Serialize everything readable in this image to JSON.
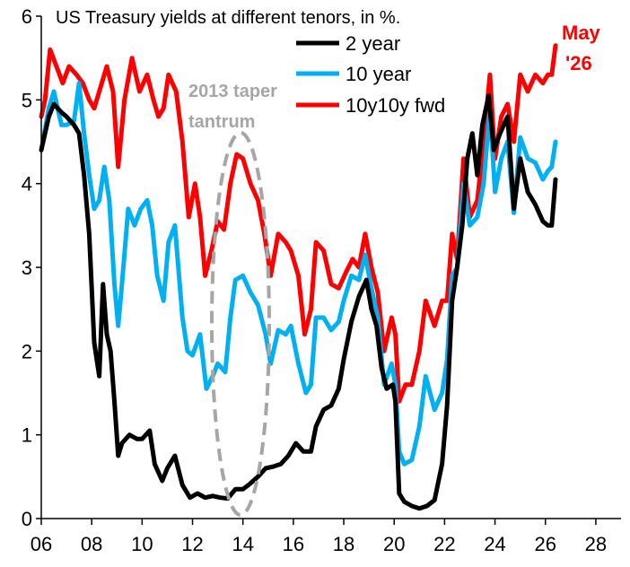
{
  "chart_data": {
    "type": "line",
    "title": "US Treasury yields at different tenors, in %.",
    "xlabel": "",
    "ylabel": "",
    "xlim": [
      2006,
      2029
    ],
    "ylim": [
      0,
      6
    ],
    "x_ticks": [
      "06",
      "08",
      "10",
      "12",
      "14",
      "16",
      "18",
      "20",
      "22",
      "24",
      "26",
      "28"
    ],
    "y_ticks": [
      "0",
      "1",
      "2",
      "3",
      "4",
      "5",
      "6"
    ],
    "grid": false,
    "legend_position": "top-center",
    "annotations": {
      "taper": [
        "2013 taper",
        "tantrum"
      ],
      "date_label": [
        "May",
        "'26"
      ]
    },
    "series": [
      {
        "name": "2 year",
        "color": "#000000",
        "points": [
          [
            2006.0,
            4.4
          ],
          [
            2006.3,
            4.8
          ],
          [
            2006.5,
            4.95
          ],
          [
            2006.8,
            4.85
          ],
          [
            2007.0,
            4.8
          ],
          [
            2007.3,
            4.7
          ],
          [
            2007.5,
            4.6
          ],
          [
            2007.7,
            4.1
          ],
          [
            2007.9,
            3.4
          ],
          [
            2008.1,
            2.1
          ],
          [
            2008.3,
            1.7
          ],
          [
            2008.45,
            2.8
          ],
          [
            2008.6,
            2.2
          ],
          [
            2008.75,
            2.0
          ],
          [
            2008.9,
            1.4
          ],
          [
            2009.05,
            0.75
          ],
          [
            2009.2,
            0.9
          ],
          [
            2009.5,
            1.0
          ],
          [
            2009.8,
            0.95
          ],
          [
            2010.0,
            0.95
          ],
          [
            2010.3,
            1.05
          ],
          [
            2010.5,
            0.65
          ],
          [
            2010.8,
            0.45
          ],
          [
            2011.0,
            0.6
          ],
          [
            2011.3,
            0.75
          ],
          [
            2011.6,
            0.4
          ],
          [
            2011.9,
            0.25
          ],
          [
            2012.2,
            0.3
          ],
          [
            2012.5,
            0.25
          ],
          [
            2012.8,
            0.27
          ],
          [
            2013.1,
            0.25
          ],
          [
            2013.4,
            0.24
          ],
          [
            2013.7,
            0.35
          ],
          [
            2014.0,
            0.35
          ],
          [
            2014.3,
            0.42
          ],
          [
            2014.6,
            0.5
          ],
          [
            2014.9,
            0.6
          ],
          [
            2015.2,
            0.62
          ],
          [
            2015.5,
            0.65
          ],
          [
            2015.8,
            0.75
          ],
          [
            2016.1,
            0.9
          ],
          [
            2016.4,
            0.8
          ],
          [
            2016.7,
            0.8
          ],
          [
            2016.9,
            1.1
          ],
          [
            2017.2,
            1.3
          ],
          [
            2017.5,
            1.35
          ],
          [
            2017.8,
            1.55
          ],
          [
            2018.0,
            1.9
          ],
          [
            2018.3,
            2.35
          ],
          [
            2018.6,
            2.65
          ],
          [
            2018.9,
            2.85
          ],
          [
            2019.1,
            2.5
          ],
          [
            2019.3,
            2.3
          ],
          [
            2019.5,
            1.8
          ],
          [
            2019.7,
            1.55
          ],
          [
            2019.95,
            1.6
          ],
          [
            2020.05,
            1.4
          ],
          [
            2020.2,
            0.3
          ],
          [
            2020.4,
            0.2
          ],
          [
            2020.7,
            0.15
          ],
          [
            2021.0,
            0.12
          ],
          [
            2021.3,
            0.15
          ],
          [
            2021.6,
            0.22
          ],
          [
            2021.9,
            0.65
          ],
          [
            2022.1,
            1.35
          ],
          [
            2022.3,
            2.6
          ],
          [
            2022.5,
            3.0
          ],
          [
            2022.7,
            3.5
          ],
          [
            2022.9,
            4.3
          ],
          [
            2023.1,
            4.6
          ],
          [
            2023.3,
            4.1
          ],
          [
            2023.5,
            4.7
          ],
          [
            2023.75,
            5.05
          ],
          [
            2023.95,
            4.4
          ],
          [
            2024.2,
            4.6
          ],
          [
            2024.5,
            4.8
          ],
          [
            2024.75,
            3.7
          ],
          [
            2025.0,
            4.3
          ],
          [
            2025.3,
            3.9
          ],
          [
            2025.6,
            3.75
          ],
          [
            2025.9,
            3.55
          ],
          [
            2026.1,
            3.5
          ],
          [
            2026.25,
            3.5
          ],
          [
            2026.4,
            4.05
          ]
        ]
      },
      {
        "name": "10 year",
        "color": "#00b0f0",
        "points": [
          [
            2006.0,
            4.4
          ],
          [
            2006.3,
            4.9
          ],
          [
            2006.5,
            5.1
          ],
          [
            2006.8,
            4.7
          ],
          [
            2007.0,
            4.7
          ],
          [
            2007.3,
            4.75
          ],
          [
            2007.5,
            5.2
          ],
          [
            2007.7,
            4.6
          ],
          [
            2007.9,
            4.1
          ],
          [
            2008.1,
            3.7
          ],
          [
            2008.3,
            3.8
          ],
          [
            2008.5,
            4.2
          ],
          [
            2008.7,
            3.8
          ],
          [
            2008.9,
            2.8
          ],
          [
            2009.05,
            2.3
          ],
          [
            2009.2,
            2.8
          ],
          [
            2009.45,
            3.7
          ],
          [
            2009.7,
            3.5
          ],
          [
            2009.95,
            3.7
          ],
          [
            2010.2,
            3.8
          ],
          [
            2010.4,
            3.5
          ],
          [
            2010.6,
            2.9
          ],
          [
            2010.85,
            2.6
          ],
          [
            2011.05,
            3.3
          ],
          [
            2011.3,
            3.5
          ],
          [
            2011.6,
            2.4
          ],
          [
            2011.8,
            2.0
          ],
          [
            2012.0,
            1.95
          ],
          [
            2012.3,
            2.2
          ],
          [
            2012.55,
            1.55
          ],
          [
            2012.8,
            1.7
          ],
          [
            2013.0,
            1.85
          ],
          [
            2013.3,
            1.75
          ],
          [
            2013.5,
            2.4
          ],
          [
            2013.7,
            2.85
          ],
          [
            2014.0,
            2.9
          ],
          [
            2014.3,
            2.7
          ],
          [
            2014.6,
            2.55
          ],
          [
            2014.9,
            2.2
          ],
          [
            2015.1,
            1.85
          ],
          [
            2015.4,
            2.25
          ],
          [
            2015.7,
            2.2
          ],
          [
            2015.9,
            2.3
          ],
          [
            2016.2,
            1.85
          ],
          [
            2016.5,
            1.5
          ],
          [
            2016.7,
            1.6
          ],
          [
            2016.9,
            2.4
          ],
          [
            2017.2,
            2.4
          ],
          [
            2017.5,
            2.25
          ],
          [
            2017.8,
            2.35
          ],
          [
            2018.0,
            2.6
          ],
          [
            2018.3,
            2.9
          ],
          [
            2018.6,
            2.85
          ],
          [
            2018.85,
            3.15
          ],
          [
            2019.1,
            2.75
          ],
          [
            2019.35,
            2.4
          ],
          [
            2019.6,
            1.6
          ],
          [
            2019.9,
            1.85
          ],
          [
            2020.05,
            1.6
          ],
          [
            2020.2,
            0.8
          ],
          [
            2020.4,
            0.65
          ],
          [
            2020.7,
            0.7
          ],
          [
            2021.0,
            1.1
          ],
          [
            2021.25,
            1.7
          ],
          [
            2021.6,
            1.3
          ],
          [
            2021.9,
            1.5
          ],
          [
            2022.1,
            1.9
          ],
          [
            2022.3,
            2.9
          ],
          [
            2022.5,
            3.0
          ],
          [
            2022.75,
            4.0
          ],
          [
            2023.0,
            3.5
          ],
          [
            2023.3,
            3.6
          ],
          [
            2023.55,
            4.0
          ],
          [
            2023.8,
            4.9
          ],
          [
            2024.0,
            3.9
          ],
          [
            2024.25,
            4.3
          ],
          [
            2024.5,
            4.5
          ],
          [
            2024.75,
            3.65
          ],
          [
            2025.0,
            4.55
          ],
          [
            2025.3,
            4.3
          ],
          [
            2025.6,
            4.25
          ],
          [
            2025.9,
            4.05
          ],
          [
            2026.1,
            4.15
          ],
          [
            2026.25,
            4.2
          ],
          [
            2026.4,
            4.5
          ]
        ]
      },
      {
        "name": "10y10y fwd",
        "color": "#ff0000",
        "points": [
          [
            2006.0,
            4.8
          ],
          [
            2006.15,
            5.0
          ],
          [
            2006.35,
            5.6
          ],
          [
            2006.6,
            5.4
          ],
          [
            2006.85,
            5.2
          ],
          [
            2007.1,
            5.4
          ],
          [
            2007.4,
            5.3
          ],
          [
            2007.65,
            5.2
          ],
          [
            2007.9,
            5.0
          ],
          [
            2008.1,
            4.9
          ],
          [
            2008.3,
            5.1
          ],
          [
            2008.6,
            5.4
          ],
          [
            2008.85,
            5.1
          ],
          [
            2009.05,
            4.2
          ],
          [
            2009.3,
            5.0
          ],
          [
            2009.6,
            5.5
          ],
          [
            2009.9,
            5.1
          ],
          [
            2010.2,
            5.3
          ],
          [
            2010.45,
            5.0
          ],
          [
            2010.65,
            4.8
          ],
          [
            2010.85,
            4.9
          ],
          [
            2011.05,
            5.3
          ],
          [
            2011.35,
            5.1
          ],
          [
            2011.6,
            4.5
          ],
          [
            2011.85,
            3.6
          ],
          [
            2012.1,
            4.0
          ],
          [
            2012.3,
            3.6
          ],
          [
            2012.5,
            2.9
          ],
          [
            2012.75,
            3.2
          ],
          [
            2013.0,
            3.55
          ],
          [
            2013.25,
            3.45
          ],
          [
            2013.5,
            4.0
          ],
          [
            2013.75,
            4.35
          ],
          [
            2014.0,
            4.3
          ],
          [
            2014.3,
            4.0
          ],
          [
            2014.6,
            3.8
          ],
          [
            2014.85,
            3.4
          ],
          [
            2015.1,
            2.9
          ],
          [
            2015.4,
            3.4
          ],
          [
            2015.7,
            3.3
          ],
          [
            2015.9,
            3.2
          ],
          [
            2016.2,
            2.9
          ],
          [
            2016.45,
            2.2
          ],
          [
            2016.7,
            2.5
          ],
          [
            2016.9,
            3.3
          ],
          [
            2017.2,
            3.2
          ],
          [
            2017.5,
            2.8
          ],
          [
            2017.8,
            2.75
          ],
          [
            2018.1,
            2.95
          ],
          [
            2018.35,
            3.1
          ],
          [
            2018.6,
            3.0
          ],
          [
            2018.85,
            3.4
          ],
          [
            2019.1,
            3.0
          ],
          [
            2019.35,
            2.7
          ],
          [
            2019.6,
            2.0
          ],
          [
            2019.9,
            2.4
          ],
          [
            2020.05,
            2.2
          ],
          [
            2020.2,
            1.4
          ],
          [
            2020.45,
            1.6
          ],
          [
            2020.7,
            1.6
          ],
          [
            2021.0,
            2.0
          ],
          [
            2021.25,
            2.6
          ],
          [
            2021.6,
            2.3
          ],
          [
            2021.9,
            2.6
          ],
          [
            2022.1,
            2.6
          ],
          [
            2022.3,
            3.4
          ],
          [
            2022.5,
            3.1
          ],
          [
            2022.75,
            4.3
          ],
          [
            2023.0,
            3.6
          ],
          [
            2023.3,
            3.8
          ],
          [
            2023.55,
            4.5
          ],
          [
            2023.8,
            5.3
          ],
          [
            2024.0,
            4.3
          ],
          [
            2024.25,
            4.8
          ],
          [
            2024.5,
            4.95
          ],
          [
            2024.75,
            4.5
          ],
          [
            2025.0,
            5.3
          ],
          [
            2025.3,
            5.1
          ],
          [
            2025.6,
            5.3
          ],
          [
            2025.9,
            5.2
          ],
          [
            2026.1,
            5.3
          ],
          [
            2026.25,
            5.3
          ],
          [
            2026.4,
            5.65
          ]
        ]
      }
    ]
  }
}
